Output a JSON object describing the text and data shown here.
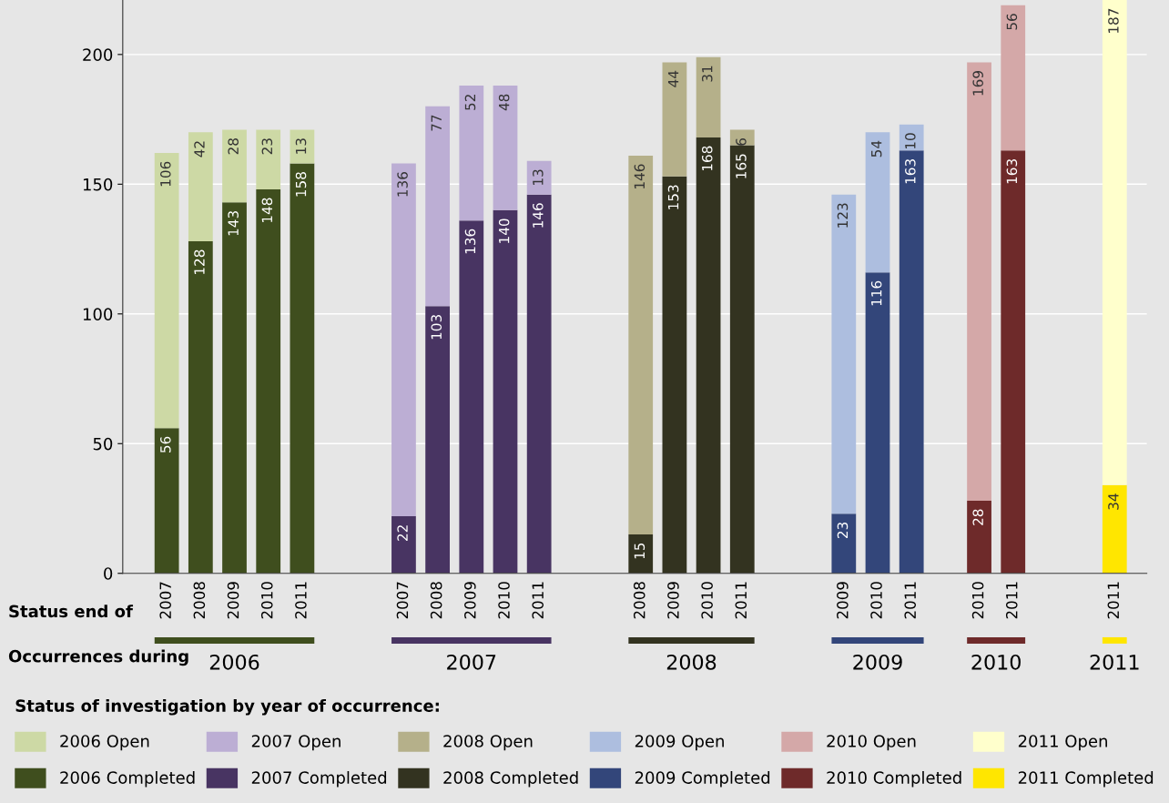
{
  "chart_data": {
    "type": "bar",
    "stacked": true,
    "data_labels": true,
    "grid": "y",
    "legend": "bottom",
    "legend_title": "Status of investigation by year of occurrence:",
    "categories": [
      "2007",
      "2008",
      "2009",
      "2010",
      "2011",
      null,
      null,
      "2007",
      "2008",
      "2009",
      "2010",
      "2011",
      null,
      null,
      "2008",
      "2009",
      "2010",
      "2011",
      null,
      null,
      "2009",
      "2010",
      "2011",
      null,
      "2010",
      "2011",
      null,
      null,
      "2011"
    ],
    "annotations": [
      "Status end of",
      "Occurrences during",
      "2006",
      "2007",
      "2008",
      "2009",
      "2010",
      "2011"
    ],
    "ylim": [
      0,
      221
    ],
    "yticks": [
      0,
      50,
      100,
      150,
      200
    ],
    "series": [
      {
        "name": "2006 Completed",
        "color": "#3f4e1e",
        "values": [
          56,
          128,
          143,
          148,
          158,
          null,
          null,
          null,
          null,
          null,
          null,
          null,
          null,
          null,
          null,
          null,
          null,
          null,
          null,
          null,
          null,
          null,
          null,
          null,
          null,
          null,
          null,
          null,
          null
        ]
      },
      {
        "name": "2006 Open",
        "color": "#cdd9a5",
        "values": [
          106,
          42,
          28,
          23,
          13,
          null,
          null,
          null,
          null,
          null,
          null,
          null,
          null,
          null,
          null,
          null,
          null,
          null,
          null,
          null,
          null,
          null,
          null,
          null,
          null,
          null,
          null,
          null,
          null
        ]
      },
      {
        "name": "2007 Completed",
        "color": "#483462",
        "values": [
          null,
          null,
          null,
          null,
          null,
          null,
          null,
          22,
          103,
          136,
          140,
          146,
          null,
          null,
          null,
          null,
          null,
          null,
          null,
          null,
          null,
          null,
          null,
          null,
          null,
          null,
          null,
          null,
          null
        ]
      },
      {
        "name": "2007 Open",
        "color": "#bcaed4",
        "values": [
          null,
          null,
          null,
          null,
          null,
          null,
          null,
          136,
          77,
          52,
          48,
          13,
          null,
          null,
          null,
          null,
          null,
          null,
          null,
          null,
          null,
          null,
          null,
          null,
          null,
          null,
          null,
          null,
          null
        ]
      },
      {
        "name": "2008 Completed",
        "color": "#333320",
        "values": [
          null,
          null,
          null,
          null,
          null,
          null,
          null,
          null,
          null,
          null,
          null,
          null,
          null,
          null,
          15,
          153,
          168,
          165,
          null,
          null,
          null,
          null,
          null,
          null,
          null,
          null,
          null,
          null,
          null
        ]
      },
      {
        "name": "2008 Open",
        "color": "#b5b08a",
        "values": [
          null,
          null,
          null,
          null,
          null,
          null,
          null,
          null,
          null,
          null,
          null,
          null,
          null,
          null,
          146,
          44,
          31,
          6,
          null,
          null,
          null,
          null,
          null,
          null,
          null,
          null,
          null,
          null,
          null
        ]
      },
      {
        "name": "2009 Completed",
        "color": "#33467a",
        "values": [
          null,
          null,
          null,
          null,
          null,
          null,
          null,
          null,
          null,
          null,
          null,
          null,
          null,
          null,
          null,
          null,
          null,
          null,
          null,
          null,
          23,
          116,
          163,
          null,
          null,
          null,
          null,
          null,
          null
        ]
      },
      {
        "name": "2009 Open",
        "color": "#adbedf",
        "values": [
          null,
          null,
          null,
          null,
          null,
          null,
          null,
          null,
          null,
          null,
          null,
          null,
          null,
          null,
          null,
          null,
          null,
          null,
          null,
          null,
          123,
          54,
          10,
          null,
          null,
          null,
          null,
          null,
          null
        ]
      },
      {
        "name": "2010 Completed",
        "color": "#6e2a2a",
        "values": [
          null,
          null,
          null,
          null,
          null,
          null,
          null,
          null,
          null,
          null,
          null,
          null,
          null,
          null,
          null,
          null,
          null,
          null,
          null,
          null,
          null,
          null,
          null,
          null,
          28,
          163,
          null,
          null,
          null
        ]
      },
      {
        "name": "2010 Open",
        "color": "#d4a8a8",
        "values": [
          null,
          null,
          null,
          null,
          null,
          null,
          null,
          null,
          null,
          null,
          null,
          null,
          null,
          null,
          null,
          null,
          null,
          null,
          null,
          null,
          null,
          null,
          null,
          null,
          169,
          56,
          null,
          null,
          null
        ]
      },
      {
        "name": "2011 Completed",
        "color": "#ffe600",
        "values": [
          null,
          null,
          null,
          null,
          null,
          null,
          null,
          null,
          null,
          null,
          null,
          null,
          null,
          null,
          null,
          null,
          null,
          null,
          null,
          null,
          null,
          null,
          null,
          null,
          null,
          null,
          null,
          null,
          34
        ]
      },
      {
        "name": "2011 Open",
        "color": "#ffffcc",
        "values": [
          null,
          null,
          null,
          null,
          null,
          null,
          null,
          null,
          null,
          null,
          null,
          null,
          null,
          null,
          null,
          null,
          null,
          null,
          null,
          null,
          null,
          null,
          null,
          null,
          null,
          null,
          null,
          null,
          187
        ]
      }
    ]
  }
}
